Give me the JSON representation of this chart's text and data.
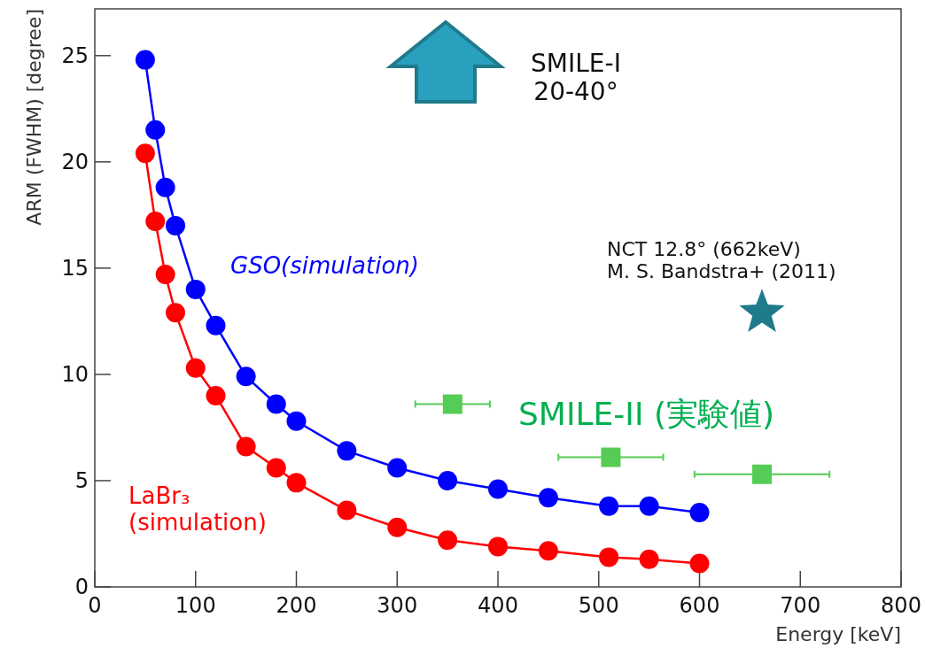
{
  "chart_data": {
    "type": "line",
    "xlabel": "Energy [keV]",
    "ylabel": "ARM (FWHM) [degree]",
    "xlim": [
      0,
      800
    ],
    "ylim": [
      0,
      27.2
    ],
    "xticks": [
      0,
      100,
      200,
      300,
      400,
      500,
      600,
      700,
      800
    ],
    "yticks": [
      0,
      5,
      10,
      15,
      20,
      25
    ],
    "series": [
      {
        "name": "GSO(simulation)",
        "color": "#0000ff",
        "marker": "circle",
        "x": [
          50,
          60,
          70,
          80,
          100,
          120,
          150,
          180,
          200,
          250,
          300,
          350,
          400,
          450,
          510,
          550,
          600
        ],
        "values": [
          24.8,
          21.5,
          18.8,
          17.0,
          14.0,
          12.3,
          9.9,
          8.6,
          7.8,
          6.4,
          5.6,
          5.0,
          4.6,
          4.2,
          3.8,
          3.8,
          3.5
        ]
      },
      {
        "name": "LaBr₃\n(simulation)",
        "color": "#ff0000",
        "marker": "circle",
        "x": [
          50,
          60,
          70,
          80,
          100,
          120,
          150,
          180,
          200,
          250,
          300,
          350,
          400,
          450,
          510,
          550,
          600
        ],
        "values": [
          20.4,
          17.2,
          14.7,
          12.9,
          10.3,
          9.0,
          6.6,
          5.6,
          4.9,
          3.6,
          2.8,
          2.2,
          1.9,
          1.7,
          1.4,
          1.3,
          1.1
        ]
      },
      {
        "name": "SMILE-II (実験値)",
        "type": "scatter",
        "color": "#55cc55",
        "marker": "square",
        "x": [
          355,
          512,
          662
        ],
        "values": [
          8.6,
          6.1,
          5.3
        ],
        "xerrors": [
          37,
          52,
          67
        ]
      },
      {
        "name": "NCT 12.8°  (662keV)\nM. S. Bandstra+ (2011)",
        "type": "scatter",
        "color": "#1f7a8c",
        "marker": "star",
        "x": [
          662
        ],
        "values": [
          12.9
        ]
      }
    ],
    "annotations": [
      "SMILE-I\n20-40°"
    ]
  }
}
